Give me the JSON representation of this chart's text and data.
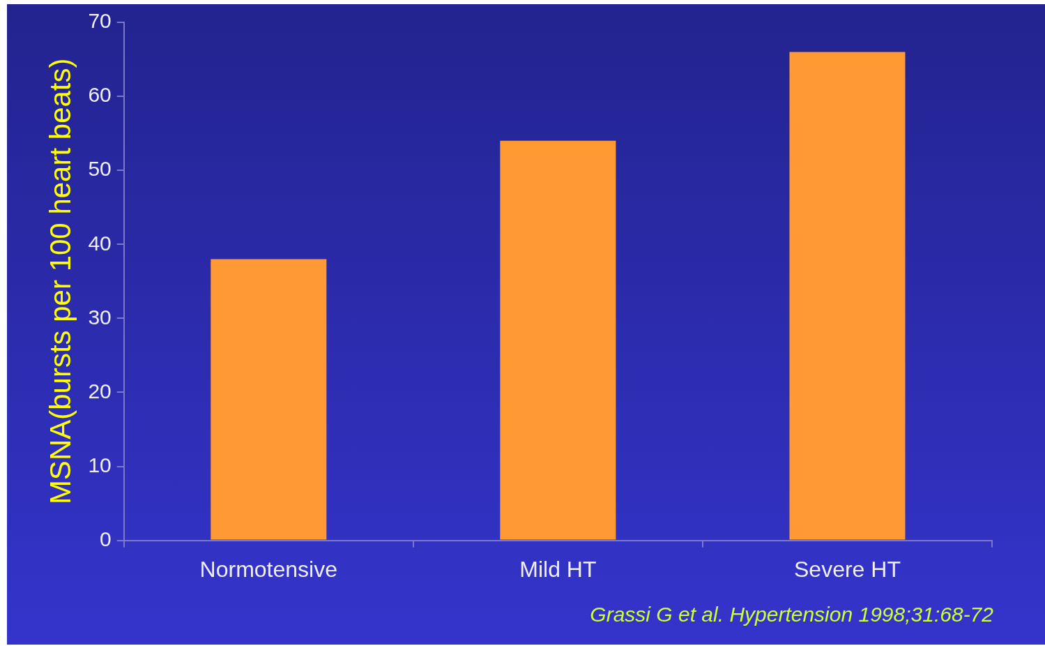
{
  "chart_data": {
    "type": "bar",
    "ylabel": "MSNA(bursts per 100 heart beats)",
    "categories": [
      "Normotensive",
      "Mild HT",
      "Severe HT"
    ],
    "values": [
      38,
      54,
      66
    ],
    "color": "#ff9933",
    "ylim": [
      0,
      70
    ],
    "yticks": [
      0,
      10,
      20,
      30,
      40,
      50,
      60,
      70
    ],
    "annotations": [
      "Grassi G et al. Hypertension 1998;31:68-72"
    ]
  }
}
